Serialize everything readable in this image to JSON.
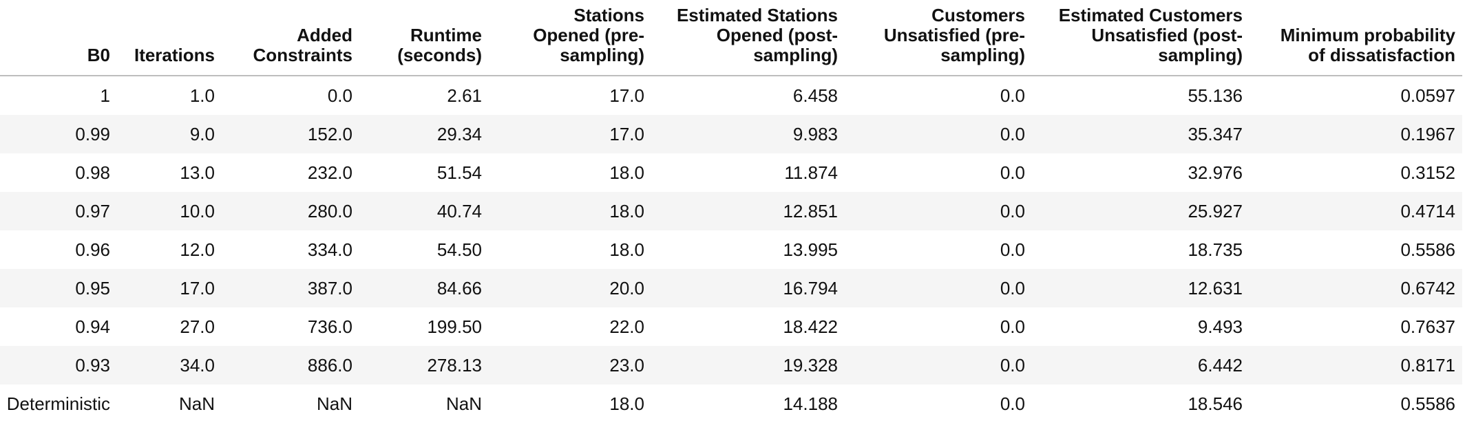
{
  "table": {
    "headers": [
      "B0",
      "Iterations",
      "Added Constraints",
      "Runtime (seconds)",
      "Stations Opened (pre-sampling)",
      "Estimated Stations Opened (post-sampling)",
      "Customers Unsatisfied (pre-sampling)",
      "Estimated Customers Unsatisfied (post-sampling)",
      "Minimum probability of dissatisfaction"
    ],
    "header_lines": [
      [
        "B0"
      ],
      [
        "Iterations"
      ],
      [
        "Added",
        "Constraints"
      ],
      [
        "Runtime",
        "(seconds)"
      ],
      [
        "Stations",
        "Opened (pre-",
        "sampling)"
      ],
      [
        "Estimated Stations",
        "Opened (post-",
        "sampling)"
      ],
      [
        "Customers",
        "Unsatisfied (pre-",
        "sampling)"
      ],
      [
        "Estimated Customers",
        "Unsatisfied (post-",
        "sampling)"
      ],
      [
        "Minimum probability",
        "of dissatisfaction"
      ]
    ],
    "rows": [
      [
        "1",
        "1.0",
        "0.0",
        "2.61",
        "17.0",
        "6.458",
        "0.0",
        "55.136",
        "0.0597"
      ],
      [
        "0.99",
        "9.0",
        "152.0",
        "29.34",
        "17.0",
        "9.983",
        "0.0",
        "35.347",
        "0.1967"
      ],
      [
        "0.98",
        "13.0",
        "232.0",
        "51.54",
        "18.0",
        "11.874",
        "0.0",
        "32.976",
        "0.3152"
      ],
      [
        "0.97",
        "10.0",
        "280.0",
        "40.74",
        "18.0",
        "12.851",
        "0.0",
        "25.927",
        "0.4714"
      ],
      [
        "0.96",
        "12.0",
        "334.0",
        "54.50",
        "18.0",
        "13.995",
        "0.0",
        "18.735",
        "0.5586"
      ],
      [
        "0.95",
        "17.0",
        "387.0",
        "84.66",
        "20.0",
        "16.794",
        "0.0",
        "12.631",
        "0.6742"
      ],
      [
        "0.94",
        "27.0",
        "736.0",
        "199.50",
        "22.0",
        "18.422",
        "0.0",
        "9.493",
        "0.7637"
      ],
      [
        "0.93",
        "34.0",
        "886.0",
        "278.13",
        "23.0",
        "19.328",
        "0.0",
        "6.442",
        "0.8171"
      ],
      [
        "Deterministic",
        "NaN",
        "NaN",
        "NaN",
        "18.0",
        "14.188",
        "0.0",
        "18.546",
        "0.5586"
      ]
    ]
  },
  "colors": {
    "stripe": "#f5f5f5",
    "header_border": "#bdbdbd",
    "text": "#111111"
  }
}
